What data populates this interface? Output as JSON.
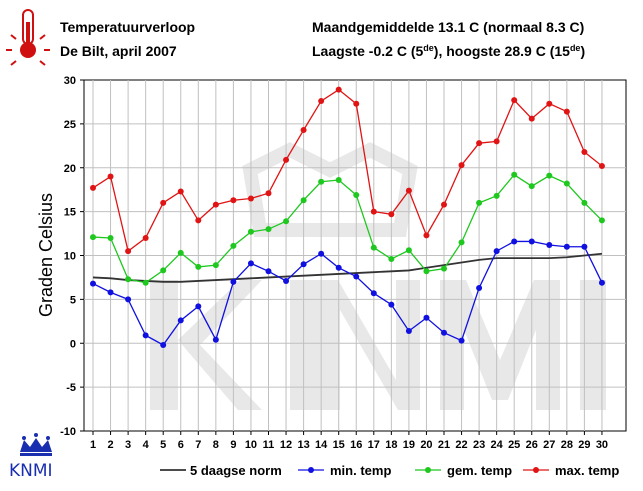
{
  "header": {
    "title": "Temperatuurverloop",
    "subtitle": "De Bilt, april 2007",
    "stats_line1": "Maandgemiddelde 13.1  C (normaal 8.3  C)",
    "stats_line2_a": "Laagste -0.2  C (5",
    "stats_line2_sup_a": "de",
    "stats_line2_b": "), hoogste 28.9  C (15",
    "stats_line2_sup_b": "de",
    "stats_line2_c": ")"
  },
  "logo": {
    "text": "KNMI"
  },
  "colors": {
    "norm": "#333333",
    "min": "#1010e0",
    "gem": "#1ec81e",
    "max": "#e01414",
    "grid": "#c0c0c0",
    "watermark": "#e6e6e6"
  },
  "chart_data": {
    "type": "line",
    "ylabel": "Graden Celsius",
    "xlabel": "",
    "ylim": [
      -10,
      30
    ],
    "yticks": [
      -10,
      -5,
      0,
      5,
      10,
      15,
      20,
      25,
      30
    ],
    "grid": true,
    "legend_position": "bottom",
    "x": [
      1,
      2,
      3,
      4,
      5,
      6,
      7,
      8,
      9,
      10,
      11,
      12,
      13,
      14,
      15,
      16,
      17,
      18,
      19,
      20,
      21,
      22,
      23,
      24,
      25,
      26,
      27,
      28,
      29,
      30
    ],
    "series": [
      {
        "name": "5 daagse norm",
        "key": "norm",
        "marker": false,
        "values": [
          7.5,
          7.4,
          7.2,
          7.1,
          7.0,
          7.0,
          7.1,
          7.2,
          7.3,
          7.4,
          7.5,
          7.6,
          7.7,
          7.8,
          7.9,
          8.0,
          8.1,
          8.2,
          8.3,
          8.6,
          8.9,
          9.2,
          9.5,
          9.7,
          9.7,
          9.7,
          9.7,
          9.8,
          10.0,
          10.2
        ]
      },
      {
        "name": "min. temp",
        "key": "min",
        "marker": true,
        "values": [
          6.8,
          5.8,
          5.0,
          0.9,
          -0.2,
          2.6,
          4.2,
          0.4,
          7.0,
          9.1,
          8.2,
          7.1,
          9.0,
          10.2,
          8.6,
          7.6,
          5.7,
          4.4,
          1.4,
          2.9,
          1.2,
          0.3,
          6.3,
          10.5,
          11.6,
          11.6,
          11.2,
          11.0,
          11.0,
          6.9
        ]
      },
      {
        "name": "gem. temp",
        "key": "gem",
        "marker": true,
        "values": [
          12.1,
          12.0,
          7.3,
          6.9,
          8.3,
          10.3,
          8.7,
          8.9,
          11.1,
          12.7,
          13.0,
          13.9,
          16.3,
          18.4,
          18.6,
          16.9,
          10.9,
          9.6,
          10.6,
          8.2,
          8.5,
          11.5,
          16.0,
          16.8,
          19.2,
          17.9,
          19.1,
          18.2,
          16.0,
          14.0
        ]
      },
      {
        "name": "max. temp",
        "key": "max",
        "marker": true,
        "values": [
          17.7,
          19.0,
          10.5,
          12.0,
          16.0,
          17.3,
          14.0,
          15.8,
          16.3,
          16.5,
          17.1,
          20.9,
          24.3,
          27.6,
          28.9,
          27.3,
          15.0,
          14.7,
          17.4,
          12.3,
          15.8,
          20.3,
          22.8,
          23.0,
          27.7,
          25.6,
          27.3,
          26.4,
          21.8,
          20.2
        ]
      }
    ]
  }
}
